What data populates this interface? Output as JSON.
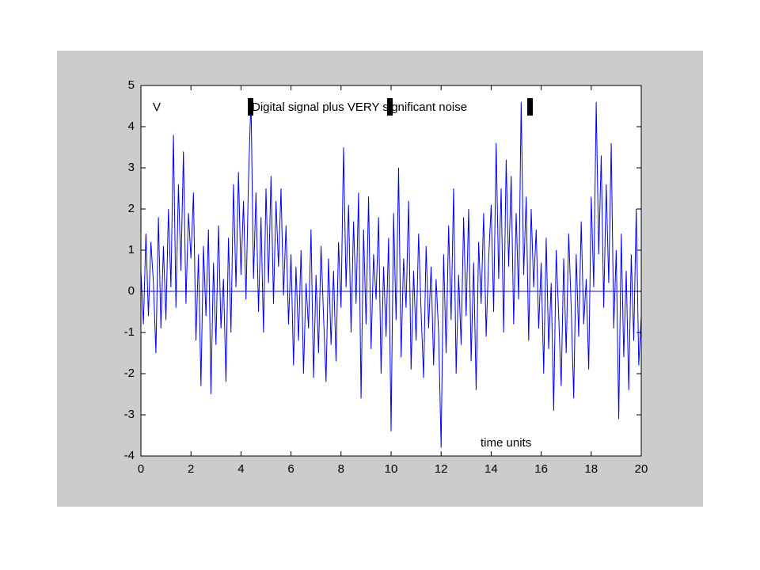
{
  "chart_data": {
    "type": "line",
    "title": "Digital signal plus VERY significant noise",
    "y_label": "V",
    "x_label": "time units",
    "color": "#0000ff",
    "x": [
      0,
      0.1,
      0.2,
      0.3,
      0.4,
      0.5,
      0.6,
      0.7,
      0.8,
      0.9,
      1,
      1.1,
      1.2,
      1.3,
      1.4,
      1.5,
      1.6,
      1.7,
      1.8,
      1.9,
      2,
      2.1,
      2.2,
      2.3,
      2.4,
      2.5,
      2.6,
      2.7,
      2.8,
      2.9,
      3,
      3.1,
      3.2,
      3.3,
      3.4,
      3.5,
      3.6,
      3.7,
      3.8,
      3.9,
      4,
      4.1,
      4.2,
      4.3,
      4.4,
      4.5,
      4.6,
      4.7,
      4.8,
      4.9,
      5,
      5.1,
      5.2,
      5.3,
      5.4,
      5.5,
      5.6,
      5.7,
      5.8,
      5.9,
      6,
      6.1,
      6.2,
      6.3,
      6.4,
      6.5,
      6.6,
      6.7,
      6.8,
      6.9,
      7,
      7.1,
      7.2,
      7.3,
      7.4,
      7.5,
      7.6,
      7.7,
      7.8,
      7.9,
      8,
      8.1,
      8.2,
      8.3,
      8.4,
      8.5,
      8.6,
      8.7,
      8.8,
      8.9,
      9,
      9.1,
      9.2,
      9.3,
      9.4,
      9.5,
      9.6,
      9.7,
      9.8,
      9.9,
      10,
      10.1,
      10.2,
      10.3,
      10.4,
      10.5,
      10.6,
      10.7,
      10.8,
      10.9,
      11,
      11.1,
      11.2,
      11.3,
      11.4,
      11.5,
      11.6,
      11.7,
      11.8,
      11.9,
      12,
      12.1,
      12.2,
      12.3,
      12.4,
      12.5,
      12.6,
      12.7,
      12.8,
      12.9,
      13,
      13.1,
      13.2,
      13.3,
      13.4,
      13.5,
      13.6,
      13.7,
      13.8,
      13.9,
      14,
      14.1,
      14.2,
      14.3,
      14.4,
      14.5,
      14.6,
      14.7,
      14.8,
      14.9,
      15,
      15.1,
      15.2,
      15.3,
      15.4,
      15.5,
      15.6,
      15.7,
      15.8,
      15.9,
      16,
      16.1,
      16.2,
      16.3,
      16.4,
      16.5,
      16.6,
      16.7,
      16.8,
      16.9,
      17,
      17.1,
      17.2,
      17.3,
      17.4,
      17.5,
      17.6,
      17.7,
      17.8,
      17.9,
      18,
      18.1,
      18.2,
      18.3,
      18.4,
      18.5,
      18.6,
      18.7,
      18.8,
      18.9,
      19,
      19.1,
      19.2,
      19.3,
      19.4,
      19.5,
      19.6,
      19.7,
      19.8,
      19.9,
      20
    ],
    "values": [
      0.5,
      -0.8,
      1.4,
      -0.6,
      1.2,
      0.2,
      -1.5,
      1.8,
      -0.9,
      1.1,
      -0.7,
      2.0,
      0.1,
      3.8,
      -0.4,
      2.6,
      0.5,
      3.4,
      -0.3,
      1.9,
      0.8,
      2.4,
      -1.2,
      0.9,
      -2.3,
      1.1,
      -0.6,
      1.5,
      -2.5,
      0.7,
      -1.3,
      1.6,
      -0.9,
      0.3,
      -2.2,
      1.3,
      -1.0,
      2.6,
      0.1,
      2.9,
      0.4,
      2.2,
      -0.2,
      2.7,
      4.7,
      0.3,
      2.4,
      -0.5,
      1.8,
      -1.0,
      2.5,
      0.2,
      2.8,
      -0.3,
      2.2,
      0.6,
      2.5,
      -0.1,
      1.6,
      -0.8,
      0.9,
      -1.8,
      0.6,
      -1.2,
      1.0,
      -2.0,
      0.2,
      -0.9,
      1.5,
      -2.1,
      0.4,
      -1.5,
      1.1,
      -0.6,
      -2.2,
      0.8,
      -1.3,
      0.5,
      -1.7,
      1.2,
      -0.4,
      3.5,
      0.1,
      2.1,
      -1.0,
      1.7,
      -0.3,
      2.4,
      -2.6,
      1.5,
      -0.8,
      2.3,
      -1.4,
      0.9,
      -0.2,
      1.8,
      -2.0,
      0.6,
      -1.1,
      1.3,
      -3.4,
      1.9,
      -0.7,
      3.0,
      -1.6,
      0.8,
      -0.4,
      2.2,
      -1.9,
      0.5,
      -1.2,
      1.4,
      -0.5,
      -2.1,
      1.1,
      -0.9,
      0.6,
      -1.8,
      0.3,
      -1.0,
      -3.8,
      0.9,
      -1.5,
      1.6,
      -0.7,
      2.5,
      -2.0,
      0.4,
      -1.3,
      1.8,
      -0.6,
      2.0,
      -1.7,
      0.7,
      -2.4,
      1.2,
      -0.3,
      1.9,
      -1.1,
      0.8,
      2.1,
      -0.5,
      3.6,
      0.3,
      2.5,
      -1.0,
      3.2,
      0.6,
      2.8,
      -0.8,
      1.9,
      -0.2,
      4.6,
      0.4,
      2.3,
      -1.2,
      2.0,
      0.1,
      1.5,
      -0.9,
      0.7,
      -2.0,
      1.3,
      -1.4,
      0.2,
      -2.9,
      1.0,
      -0.6,
      -2.3,
      0.8,
      -1.5,
      1.4,
      -0.4,
      -2.6,
      0.9,
      -1.1,
      1.7,
      -0.8,
      0.3,
      -1.9,
      2.3,
      0.1,
      4.6,
      0.9,
      3.3,
      -0.4,
      2.6,
      0.2,
      3.6,
      -0.9,
      1.0,
      -3.1,
      1.4,
      -1.6,
      0.5,
      -2.4,
      0.9,
      -1.2,
      2.0,
      -1.8,
      -0.6
    ],
    "xlim": [
      0,
      20
    ],
    "xticks": [
      0,
      2,
      4,
      6,
      8,
      10,
      12,
      14,
      16,
      18,
      20
    ],
    "ylim": [
      -4,
      5
    ],
    "yticks": [
      -4,
      -3,
      -2,
      -1,
      0,
      1,
      2,
      3,
      4,
      5
    ],
    "zero_line": true
  }
}
